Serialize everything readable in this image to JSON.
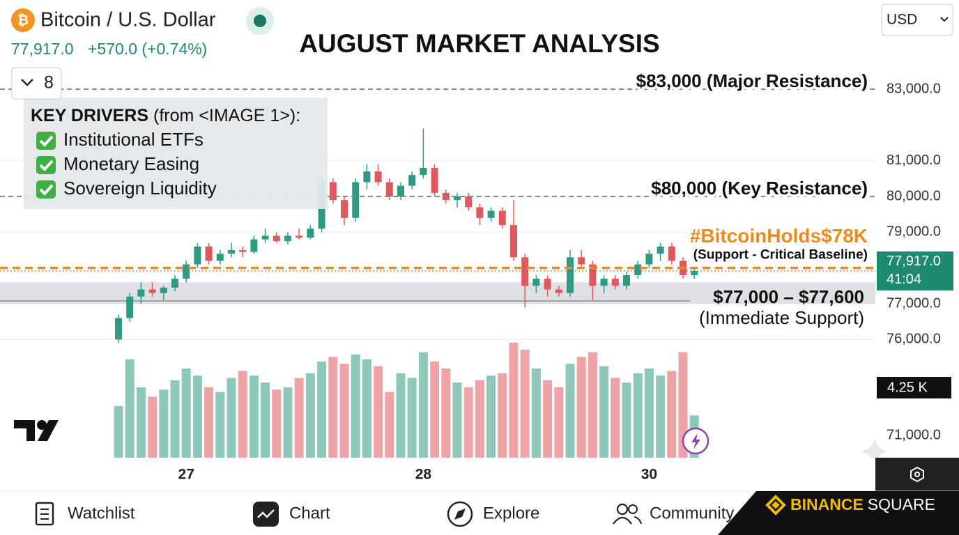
{
  "header": {
    "coin_icon": "₿",
    "symbol": "Bitcoin / U.S. Dollar",
    "price": "77,917.0",
    "change": "+570.0 (+0.74%)",
    "currency": "USD",
    "indicator_count": "8"
  },
  "key_drivers": {
    "title": "KEY DRIVERS",
    "source": "(from <IMAGE 1>):",
    "items": [
      "Institutional ETFs",
      "Monetary Easing",
      "Sovereign Liquidity"
    ]
  },
  "chart_data": {
    "type": "candlestick",
    "title": "AUGUST MARKET ANALYSIS",
    "categories": [
      null,
      null,
      null,
      null,
      null,
      null,
      "27",
      null,
      null,
      null,
      null,
      null,
      null,
      null,
      null,
      null,
      null,
      null,
      null,
      null,
      null,
      null,
      null,
      null,
      null,
      null,
      null,
      "28",
      null,
      null,
      null,
      null,
      null,
      null,
      null,
      null,
      null,
      null,
      null,
      null,
      null,
      null,
      null,
      null,
      null,
      null,
      null,
      "30",
      null,
      null,
      null,
      null
    ],
    "open": [
      76000,
      76600,
      77200,
      77400,
      77300,
      77450,
      77700,
      78100,
      78600,
      78200,
      78400,
      78500,
      78450,
      78800,
      78900,
      78750,
      78900,
      78850,
      79100,
      80400,
      79900,
      79400,
      80400,
      80700,
      80400,
      80000,
      80300,
      80600,
      80800,
      80100,
      79900,
      80000,
      79700,
      79400,
      79600,
      79200,
      78300,
      77500,
      77700,
      77400,
      77300,
      78300,
      78100,
      77500,
      77700,
      77500,
      77800,
      78100,
      78400,
      78600,
      78200,
      77800
    ],
    "high": [
      76700,
      77300,
      77600,
      77600,
      77500,
      77800,
      78200,
      78700,
      78700,
      78500,
      78700,
      78600,
      78900,
      79100,
      79000,
      79000,
      79100,
      79200,
      80600,
      80500,
      80000,
      80500,
      80900,
      80900,
      80500,
      80400,
      80700,
      81900,
      80900,
      80200,
      80100,
      80100,
      79800,
      79700,
      79700,
      79900,
      78400,
      77800,
      77800,
      77500,
      78500,
      78500,
      78200,
      77800,
      77800,
      77900,
      78200,
      78500,
      78700,
      78700,
      78300,
      78000
    ],
    "low": [
      75900,
      76500,
      77000,
      77200,
      77100,
      77350,
      77600,
      78000,
      78100,
      78100,
      78300,
      78300,
      78400,
      78700,
      78700,
      78650,
      78800,
      78800,
      79000,
      79800,
      79200,
      79300,
      80200,
      80300,
      79900,
      79900,
      80200,
      80500,
      80000,
      79800,
      79700,
      79600,
      79200,
      79300,
      79100,
      78200,
      76900,
      77300,
      77200,
      77200,
      77200,
      78000,
      77100,
      77300,
      77400,
      77400,
      77700,
      78000,
      78200,
      78100,
      77700,
      77700
    ],
    "close": [
      76600,
      77200,
      77400,
      77300,
      77450,
      77700,
      78100,
      78600,
      78200,
      78400,
      78500,
      78450,
      78800,
      78900,
      78750,
      78900,
      78850,
      79100,
      80400,
      79900,
      79400,
      80400,
      80700,
      80400,
      80000,
      80300,
      80600,
      80800,
      80100,
      79900,
      80000,
      79700,
      79400,
      79600,
      79200,
      78300,
      77500,
      77700,
      77400,
      77300,
      78300,
      78100,
      77500,
      77700,
      77500,
      77800,
      78100,
      78400,
      78600,
      78200,
      77800,
      77917
    ],
    "volume": [
      2.2,
      4.2,
      3.0,
      2.6,
      2.9,
      3.3,
      3.8,
      3.5,
      3.0,
      2.8,
      3.4,
      3.7,
      3.5,
      3.2,
      2.9,
      3.0,
      3.4,
      3.6,
      4.1,
      4.3,
      4.0,
      4.4,
      4.2,
      3.9,
      2.8,
      3.6,
      3.4,
      4.5,
      4.1,
      3.8,
      3.2,
      3.0,
      3.3,
      3.5,
      3.6,
      4.9,
      4.6,
      3.8,
      3.3,
      3.0,
      4.0,
      4.3,
      4.5,
      3.9,
      3.4,
      3.2,
      3.6,
      3.8,
      3.5,
      3.7,
      4.5,
      1.8
    ],
    "up_color": "#2f9a84",
    "down_color": "#e0585e",
    "ylim": [
      75500,
      83800
    ],
    "yticks": [
      {
        "value": 76000,
        "label": "76,000.0"
      },
      {
        "value": 77000,
        "label": "77,000.0"
      },
      {
        "value": 79000,
        "label": "79,000.0"
      },
      {
        "value": 80000,
        "label": "80,000.0"
      },
      {
        "value": 81000,
        "label": "81,000.0"
      },
      {
        "value": 83000,
        "label": "83,000.0"
      }
    ],
    "grid": true,
    "levels": [
      {
        "value": 83000,
        "label": "$83,000 (Major Resistance)"
      },
      {
        "value": 80000,
        "label": "$80,000 (Key Resistance)"
      }
    ],
    "highlight_level": {
      "value": 78000,
      "label": "#BitcoinHolds$78K",
      "note": "(Support - Critical Baseline)",
      "color": "#ee8a1c"
    },
    "support_zone": {
      "range": [
        77000,
        77600
      ],
      "label": "$77,000 – $77,600",
      "note": "(Immediate Support)"
    },
    "last_price": {
      "value": 77917,
      "label": "77,917.0",
      "countdown": "41:04"
    },
    "volume_ma_label": "4.25 K",
    "volume_pane_label": "71,000.0"
  },
  "nav": {
    "items": [
      "Watchlist",
      "Chart",
      "Explore",
      "Community"
    ],
    "brand": "BINANCE",
    "brand_suffix": "SQUARE"
  }
}
